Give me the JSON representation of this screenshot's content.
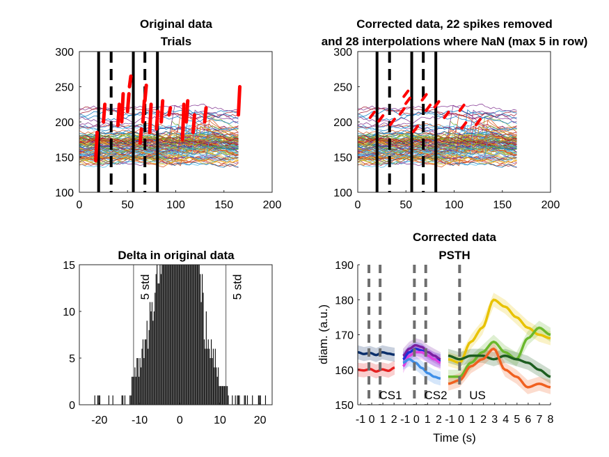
{
  "figure": {
    "panels": [
      {
        "id": "original",
        "title_lines": [
          "Original data",
          "Trials"
        ]
      },
      {
        "id": "corrected",
        "title_lines": [
          "Corrected data, 22 spikes removed",
          "and 28 interpolations where NaN (max 5 in row)"
        ]
      },
      {
        "id": "delta",
        "title_lines": [
          "Delta in original data"
        ]
      },
      {
        "id": "psth",
        "title_lines": [
          "Corrected data",
          "PSTH"
        ]
      }
    ]
  },
  "chart_data": [
    {
      "type": "line",
      "title": "Original data\nTrials",
      "xlabel": "",
      "ylabel": "",
      "xlim": [
        0,
        200
      ],
      "ylim": [
        100,
        300
      ],
      "xticks": [
        0,
        50,
        100,
        150,
        200
      ],
      "yticks": [
        100,
        150,
        200,
        250,
        300
      ],
      "trial_count_approx": 120,
      "trial_length": 167,
      "trial_band": {
        "center": 160,
        "spread_low": 130,
        "spread_high": 230
      },
      "event_lines_solid": [
        20,
        56,
        81
      ],
      "event_lines_dashed": [
        33,
        68
      ],
      "spikes_red": [
        {
          "x": 17,
          "y_from": 145,
          "y_to": 185
        },
        {
          "x": 25,
          "y_from": 200,
          "y_to": 225
        },
        {
          "x": 40,
          "y_from": 195,
          "y_to": 225
        },
        {
          "x": 44,
          "y_from": 200,
          "y_to": 240
        },
        {
          "x": 50,
          "y_from": 215,
          "y_to": 240
        },
        {
          "x": 52,
          "y_from": 250,
          "y_to": 265
        },
        {
          "x": 63,
          "y_from": 170,
          "y_to": 190
        },
        {
          "x": 66,
          "y_from": 200,
          "y_to": 230
        },
        {
          "x": 68,
          "y_from": 230,
          "y_to": 252
        },
        {
          "x": 73,
          "y_from": 185,
          "y_to": 225
        },
        {
          "x": 80,
          "y_from": 190,
          "y_to": 215
        },
        {
          "x": 85,
          "y_from": 200,
          "y_to": 230
        },
        {
          "x": 93,
          "y_from": 210,
          "y_to": 220
        },
        {
          "x": 107,
          "y_from": 175,
          "y_to": 225
        },
        {
          "x": 111,
          "y_from": 200,
          "y_to": 230
        },
        {
          "x": 118,
          "y_from": 185,
          "y_to": 210
        },
        {
          "x": 130,
          "y_from": 200,
          "y_to": 220
        },
        {
          "x": 165,
          "y_from": 210,
          "y_to": 250
        }
      ]
    },
    {
      "type": "line",
      "title": "Corrected data, 22 spikes removed\nand 28 interpolations where NaN (max 5 in row)",
      "xlabel": "",
      "ylabel": "",
      "xlim": [
        0,
        200
      ],
      "ylim": [
        100,
        300
      ],
      "xticks": [
        0,
        50,
        100,
        150,
        200
      ],
      "yticks": [
        100,
        150,
        200,
        250,
        300
      ],
      "trial_length": 167,
      "event_lines_solid": [
        20,
        56,
        81
      ],
      "event_lines_dashed": [
        33,
        68
      ],
      "interpolations_red": [
        {
          "x": 15,
          "y": 210
        },
        {
          "x": 24,
          "y": 205
        },
        {
          "x": 36,
          "y": 200
        },
        {
          "x": 46,
          "y": 215
        },
        {
          "x": 50,
          "y": 240
        },
        {
          "x": 52,
          "y": 230
        },
        {
          "x": 60,
          "y": 190
        },
        {
          "x": 69,
          "y": 235
        },
        {
          "x": 73,
          "y": 220
        },
        {
          "x": 82,
          "y": 225
        },
        {
          "x": 92,
          "y": 210
        },
        {
          "x": 108,
          "y": 220
        },
        {
          "x": 110,
          "y": 195
        },
        {
          "x": 125,
          "y": 200
        }
      ]
    },
    {
      "type": "bar",
      "title": "Delta in original data",
      "xlabel": "",
      "ylabel": "",
      "xlim": [
        -25,
        23
      ],
      "ylim": [
        0,
        15
      ],
      "xticks": [
        -20,
        -10,
        0,
        10,
        20
      ],
      "yticks": [
        0,
        5,
        10,
        15
      ],
      "threshold_lines": [
        -11.5,
        11.5
      ],
      "annotations": [
        "5 std",
        "5 std"
      ],
      "histogram_envelope": [
        {
          "x": -22,
          "y": 1
        },
        {
          "x": -18,
          "y": 1
        },
        {
          "x": -13,
          "y": 1
        },
        {
          "x": -12,
          "y": 3
        },
        {
          "x": -10,
          "y": 6
        },
        {
          "x": -8,
          "y": 10
        },
        {
          "x": -6,
          "y": 14
        },
        {
          "x": -4,
          "y": 30
        },
        {
          "x": 0,
          "y": 40
        },
        {
          "x": 4,
          "y": 30
        },
        {
          "x": 6,
          "y": 11
        },
        {
          "x": 8,
          "y": 8
        },
        {
          "x": 10,
          "y": 3
        },
        {
          "x": 12,
          "y": 2
        },
        {
          "x": 15,
          "y": 1
        },
        {
          "x": 18,
          "y": 1
        },
        {
          "x": 22,
          "y": 1
        }
      ]
    },
    {
      "type": "line",
      "title": "Corrected data\nPSTH",
      "xlabel": "Time (s)",
      "ylabel": "diam. (a.u.)",
      "ylim": [
        150,
        190
      ],
      "yticks": [
        150,
        160,
        170,
        180,
        190
      ],
      "xtick_labels": [
        "-1",
        "0",
        "1",
        "2",
        "-1",
        "0",
        "1",
        "2",
        "-1",
        "0",
        "1",
        "2",
        "3",
        "4",
        "5",
        "6",
        "7",
        "8"
      ],
      "event_labels": [
        "CS1",
        "CS2",
        "US"
      ],
      "segments": [
        {
          "name": "",
          "x_range": [
            -1,
            2.3
          ],
          "event_dashed_x": [
            0,
            1
          ],
          "series": [
            {
              "color": "#0b2f6b",
              "values": [
                165,
                164.5,
                164.8,
                164.2,
                165,
                164.6,
                164.3
              ]
            },
            {
              "color": "#e62020",
              "values": [
                160,
                159.8,
                160.2,
                159.5,
                160.1,
                159.7,
                160.6
              ]
            }
          ]
        },
        {
          "name": "",
          "x_range": [
            -1,
            2.3
          ],
          "event_dashed_x": [
            0,
            1
          ],
          "series": [
            {
              "color": "#7a1fa2",
              "values": [
                164,
                166,
                167,
                166.5,
                165,
                164,
                163
              ]
            },
            {
              "color": "#1f2fd6",
              "values": [
                163,
                165,
                166,
                165.5,
                164,
                163,
                162.5
              ]
            },
            {
              "color": "#e040e0",
              "values": [
                161,
                164,
                165,
                165,
                164,
                163,
                162
              ]
            },
            {
              "color": "#3f8fe8",
              "values": [
                162,
                163,
                162,
                160.5,
                159,
                158,
                157.5
              ]
            }
          ]
        },
        {
          "name": "",
          "x_range": [
            -1,
            8
          ],
          "event_dashed_x": [
            0
          ],
          "series": [
            {
              "color": "#e8c200",
              "values": [
                163,
                162,
                168,
                172,
                180,
                178,
                175,
                172,
                170,
                169
              ]
            },
            {
              "color": "#6ab82c",
              "values": [
                158,
                158,
                162,
                165,
                168,
                165,
                163,
                169,
                172,
                170
              ]
            },
            {
              "color": "#1e5e20",
              "values": [
                164,
                163,
                164,
                164,
                163,
                164,
                163,
                162,
                160,
                158
              ]
            },
            {
              "color": "#f06020",
              "values": [
                156,
                157,
                161,
                163,
                166,
                160,
                158,
                155,
                156,
                155
              ]
            }
          ]
        }
      ]
    }
  ]
}
